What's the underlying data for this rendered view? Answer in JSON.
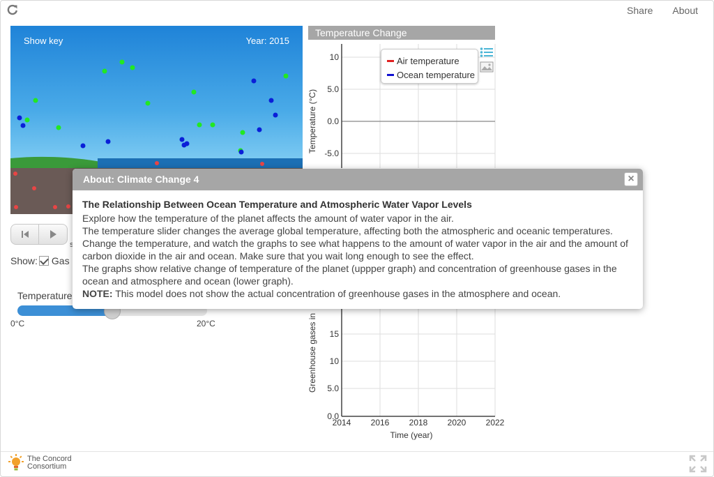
{
  "header": {
    "share_label": "Share",
    "about_label": "About",
    "reload_icon": "reload-icon"
  },
  "simulation": {
    "show_key_label": "Show key",
    "year_label": "Year: 2015",
    "colors": {
      "water_vapor": "#22e822",
      "co2": "#0a1fd8",
      "ocean_particle": "#e84545",
      "land": "#3a9a3a",
      "ocean": "#1c6fb4",
      "sediment": "#6a5a56"
    }
  },
  "controls": {
    "reset_icon": "skip-back-icon",
    "play_icon": "play-icon",
    "cut_text": "s",
    "show_label": "Show:",
    "gases_label": "Gas",
    "gases_checked": true,
    "temperature_label": "Temperature",
    "slider_min": "0°C",
    "slider_max": "20°C",
    "slider_fraction": 0.5
  },
  "graph": {
    "title": "Temperature Change",
    "legend": [
      {
        "label": "Air temperature",
        "color": "#e02020"
      },
      {
        "label": "Ocean temperature",
        "color": "#1010d0"
      }
    ],
    "upper_ylabel": "Temperature (°C)",
    "upper_ticks": [
      "10",
      "5.0",
      "0.0",
      "-5.0"
    ],
    "lower_ylabel": "Greenhouse gases in",
    "lower_ticks": [
      "15",
      "10",
      "5.0",
      "0.0"
    ],
    "xticks": [
      "2014",
      "2016",
      "2018",
      "2020",
      "2022"
    ],
    "xlabel": "Time (year)"
  },
  "modal": {
    "title": "About: Climate Change 4",
    "heading": "The Relationship Between Ocean Temperature and Atmospheric Water Vapor Levels",
    "p1": "Explore how the temperature of the planet affects the amount of water vapor in the air.",
    "p2": "The temperature slider changes the average global temperature, affecting both the atmospheric and oceanic temperatures. Change the temperature, and watch the graphs to see what happens to the amount of water vapor in the air and the amount of carbon dioxide in the air and ocean. Make sure that you wait long enough to see the effect.",
    "p3": "The graphs show relative change of temperature of the planet (uppper graph) and concentration of greenhouse gases in the ocean and atmosphere and ocean (lower graph).",
    "note_label": "NOTE:",
    "note_text": " This model does not show the actual concentration of greenhouse gases in the atmosphere and ocean."
  },
  "footer": {
    "logo_line1": "The Concord",
    "logo_line2": "Consortium",
    "fullscreen_icon": "fullscreen-icon"
  }
}
